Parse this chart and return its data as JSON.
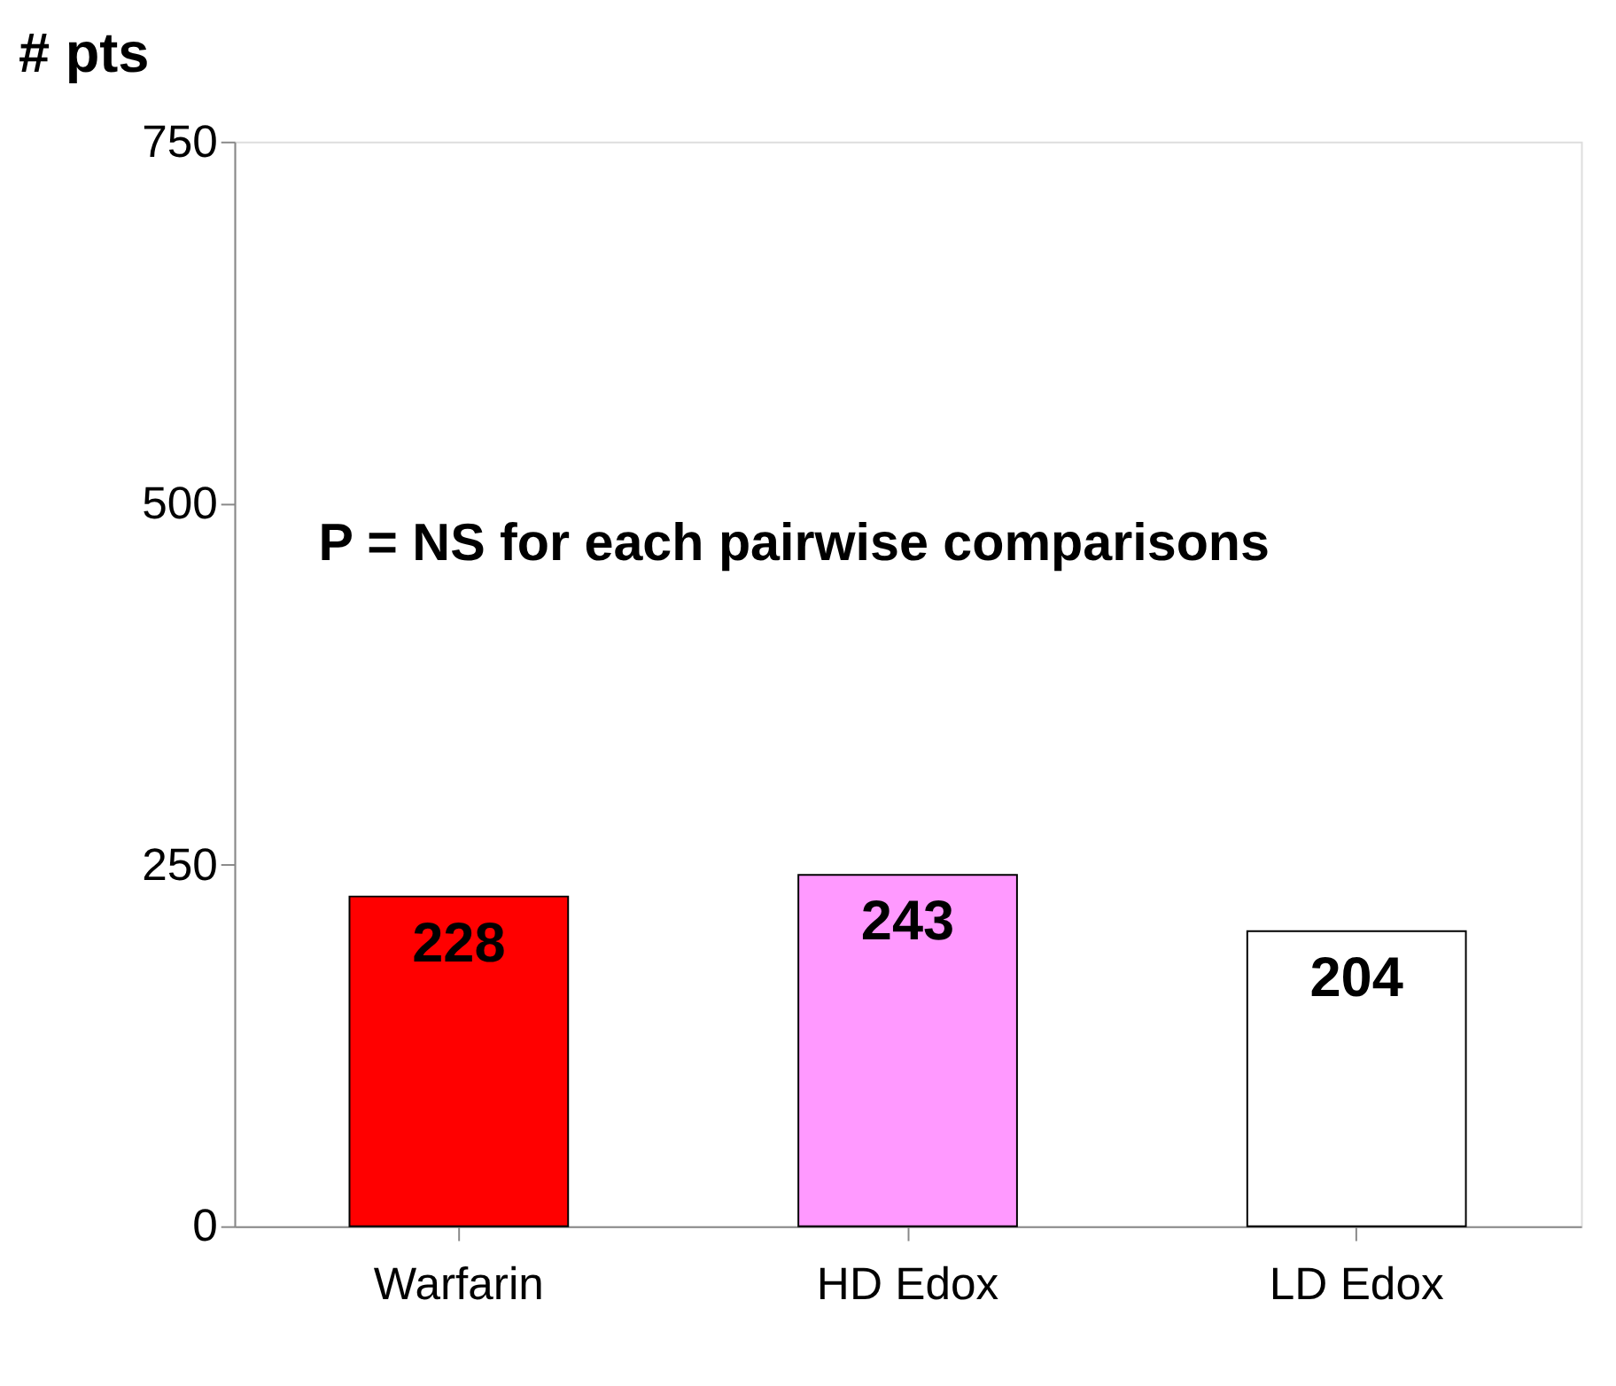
{
  "chart_data": {
    "type": "bar",
    "ylabel": "# pts",
    "categories": [
      "Warfarin",
      "HD Edox",
      "LD Edox"
    ],
    "values": [
      228,
      243,
      204
    ],
    "colors": [
      "#ff0000",
      "#ff99ff",
      "#ffffff"
    ],
    "ylim": [
      0,
      750
    ],
    "yticks": [
      0,
      250,
      500,
      750
    ],
    "grid": false,
    "data_labels": true,
    "annotations": [
      "P = NS for each pairwise comparisons"
    ]
  }
}
